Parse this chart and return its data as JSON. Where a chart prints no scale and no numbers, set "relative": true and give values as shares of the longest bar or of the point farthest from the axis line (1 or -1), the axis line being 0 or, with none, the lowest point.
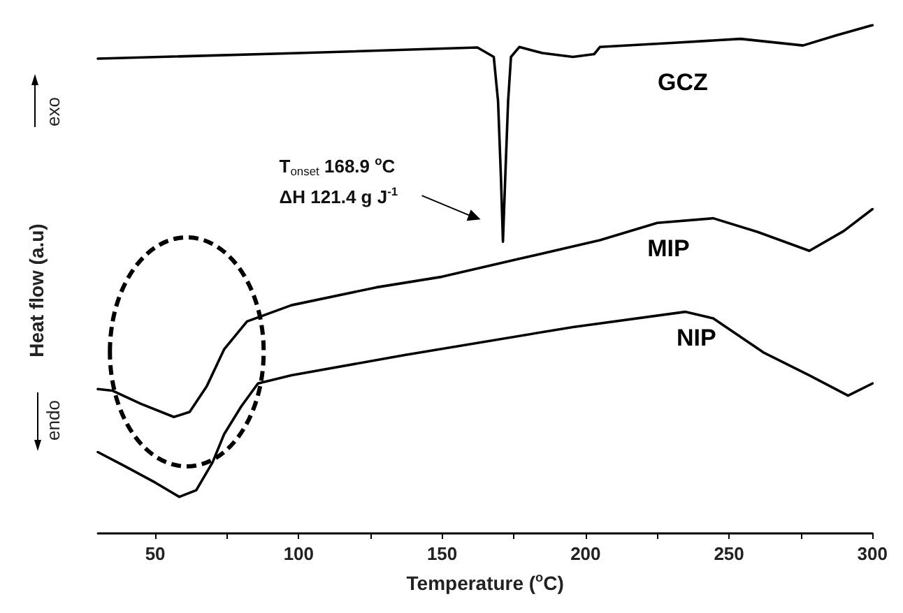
{
  "chart_data": {
    "type": "line",
    "relative": true,
    "xlabel": "Temperature ($^{o}$C)",
    "ylabel": "Heat flow (a.u)",
    "xlim": [
      30,
      300
    ],
    "xticks": [
      50,
      {
        "value": 75,
        "label": null
      },
      100,
      {
        "value": 125,
        "label": null
      },
      150,
      {
        "value": 175,
        "label": null
      },
      200,
      {
        "value": 225,
        "label": null
      },
      250,
      {
        "value": 275,
        "label": null
      },
      300
    ],
    "marker": "none",
    "line_style": "solid",
    "grid": false,
    "legend": false,
    "annotations": [
      "T$_{onset}$ 168.9 $^{o}$C",
      "ΔH 121.4 g J$^{-1}$",
      "exo",
      "endo"
    ],
    "series": [
      {
        "name": "GCZ",
        "color": "#000000",
        "x": [
          30,
          100,
          162.3,
          168,
          169.5,
          170.5,
          171.2,
          172,
          173,
          174,
          176.9,
          185,
          195.6,
          203,
          205,
          230,
          254,
          275.8,
          287.5,
          300
        ],
        "values": [
          0.934,
          0.945,
          0.956,
          0.9375,
          0.85,
          0.7,
          0.574,
          0.7,
          0.85,
          0.9375,
          0.957,
          0.945,
          0.9375,
          0.943,
          0.957,
          0.965,
          0.973,
          0.96,
          0.98,
          1
        ]
      },
      {
        "name": "MIP",
        "color": "#000000",
        "x": [
          30,
          35,
          45,
          56.5,
          62,
          68,
          74,
          82,
          97.5,
          127,
          150,
          176,
          205,
          225,
          244.5,
          260,
          278,
          290,
          300
        ],
        "values": [
          0.284,
          0.281,
          0.255,
          0.229,
          0.239,
          0.29,
          0.362,
          0.417,
          0.449,
          0.484,
          0.505,
          0.539,
          0.577,
          0.611,
          0.62,
          0.593,
          0.556,
          0.595,
          0.638
        ]
      },
      {
        "name": "NIP",
        "color": "#000000",
        "x": [
          30,
          38.8,
          50,
          58.4,
          64.3,
          70,
          74,
          80,
          85.8,
          97.5,
          137,
          195.6,
          234.7,
          244.5,
          262,
          278,
          291.5,
          300
        ],
        "values": [
          0.16,
          0.134,
          0.1,
          0.072,
          0.085,
          0.14,
          0.195,
          0.25,
          0.295,
          0.311,
          0.351,
          0.406,
          0.436,
          0.423,
          0.356,
          0.311,
          0.271,
          0.295
        ]
      }
    ]
  }
}
